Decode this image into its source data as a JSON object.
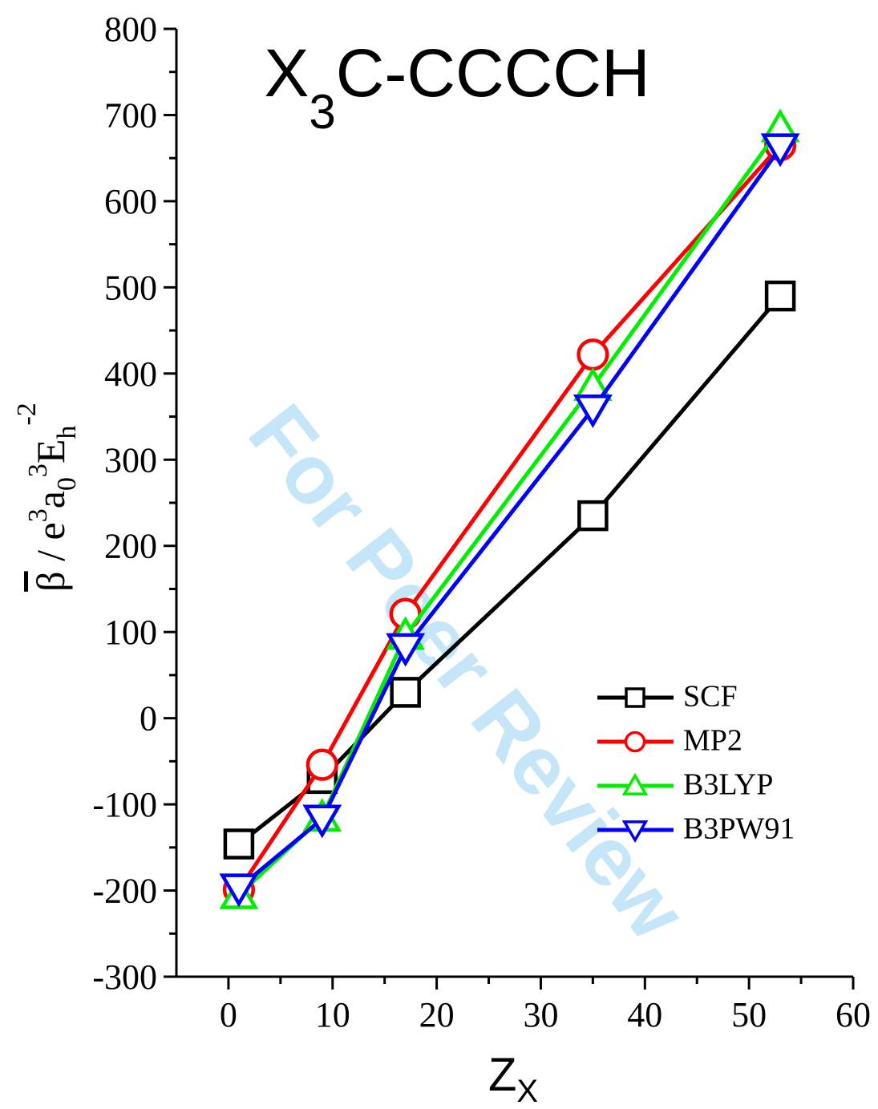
{
  "chart_data": {
    "type": "line",
    "title": [
      "X",
      "3",
      "C-CCCCH"
    ],
    "xlabel": [
      "Z",
      "X"
    ],
    "ylabel": [
      "β",
      " / e",
      "3",
      "a",
      "0",
      "3",
      "E",
      "h",
      "-2"
    ],
    "watermark": "For Peer Review",
    "x": [
      1,
      9,
      17,
      35,
      53
    ],
    "series": [
      {
        "name": "SCF",
        "color": "#000000",
        "marker": "square",
        "values": [
          -146,
          -70,
          30,
          235,
          490
        ]
      },
      {
        "name": "MP2",
        "color": "#ff0000",
        "marker": "circle",
        "values": [
          -199,
          -54,
          121,
          422,
          665
        ]
      },
      {
        "name": "B3LYP",
        "color": "#00ee00",
        "marker": "triangle-up",
        "values": [
          -205,
          -115,
          96,
          385,
          685
        ]
      },
      {
        "name": "B3PW91",
        "color": "#0000ff",
        "marker": "triangle-down",
        "values": [
          -197,
          -117,
          82,
          359,
          662
        ]
      }
    ],
    "xlim": [
      -5,
      60
    ],
    "xticks": [
      0,
      10,
      20,
      30,
      40,
      50,
      60
    ],
    "ylim": [
      -300,
      800
    ],
    "yticks": [
      -300,
      -200,
      -100,
      0,
      100,
      200,
      300,
      400,
      500,
      600,
      700,
      800
    ],
    "legend": "right"
  }
}
